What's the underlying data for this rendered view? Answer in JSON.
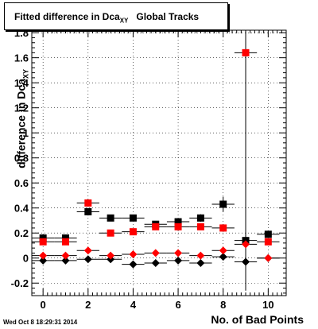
{
  "timestamp": "Wed Oct  8 18:29:31 2014",
  "chart_data": {
    "type": "scatter",
    "title": "Fitted difference in Dca",
    "title_sub": "XY",
    "title_suffix": "Global Tracks",
    "xlabel": "No. of Bad Points",
    "ylabel": "difference in Dca",
    "ylabel_sub": "XY",
    "xlim": [
      -0.5,
      10.8
    ],
    "ylim": [
      -0.3,
      1.82
    ],
    "xticks": [
      0,
      2,
      4,
      6,
      8,
      10
    ],
    "yticks": [
      -0.2,
      0,
      0.2,
      0.4,
      0.6,
      0.8,
      1,
      1.2,
      1.4,
      1.6,
      1.8
    ],
    "grid": true,
    "series": [
      {
        "marker": "square",
        "color": "#000000",
        "x": [
          0,
          1,
          2,
          3,
          4,
          5,
          6,
          7,
          8,
          9,
          10
        ],
        "y": [
          0.16,
          0.16,
          0.37,
          0.32,
          0.32,
          0.27,
          0.29,
          0.32,
          0.43,
          0.14,
          0.19
        ],
        "yerr": [
          0.02,
          0.02,
          0.03,
          0.02,
          0.02,
          0.02,
          0.02,
          0.03,
          0.06,
          0.05,
          0.03
        ]
      },
      {
        "marker": "square",
        "color": "#ff0000",
        "x": [
          0,
          1,
          2,
          3,
          4,
          5,
          6,
          7,
          8,
          9,
          10
        ],
        "y": [
          0.13,
          0.13,
          0.44,
          0.2,
          0.21,
          0.25,
          0.25,
          0.25,
          0.24,
          1.64,
          0.13
        ],
        "yerr": [
          0.02,
          0.02,
          0.03,
          0.02,
          0.02,
          0.02,
          0.02,
          0.02,
          0.03,
          1.9,
          0.02
        ]
      },
      {
        "marker": "diamond",
        "color": "#000000",
        "x": [
          0,
          1,
          2,
          3,
          4,
          5,
          6,
          7,
          8,
          9,
          10
        ],
        "y": [
          -0.02,
          -0.02,
          -0.01,
          -0.01,
          -0.05,
          -0.04,
          -0.02,
          -0.04,
          0.01,
          -0.03,
          0.0
        ],
        "yerr": [
          0.01,
          0.01,
          0.01,
          0.01,
          0.01,
          0.01,
          0.01,
          0.01,
          0.02,
          0.02,
          0.01
        ]
      },
      {
        "marker": "diamond",
        "color": "#ff0000",
        "x": [
          0,
          1,
          2,
          3,
          4,
          5,
          6,
          7,
          8,
          9,
          10
        ],
        "y": [
          0.02,
          0.02,
          0.06,
          0.02,
          0.03,
          0.04,
          0.04,
          0.02,
          0.06,
          0.11,
          0.0
        ],
        "yerr": [
          0.01,
          0.01,
          0.01,
          0.01,
          0.01,
          0.01,
          0.01,
          0.01,
          0.02,
          0.03,
          0.01
        ]
      }
    ]
  }
}
